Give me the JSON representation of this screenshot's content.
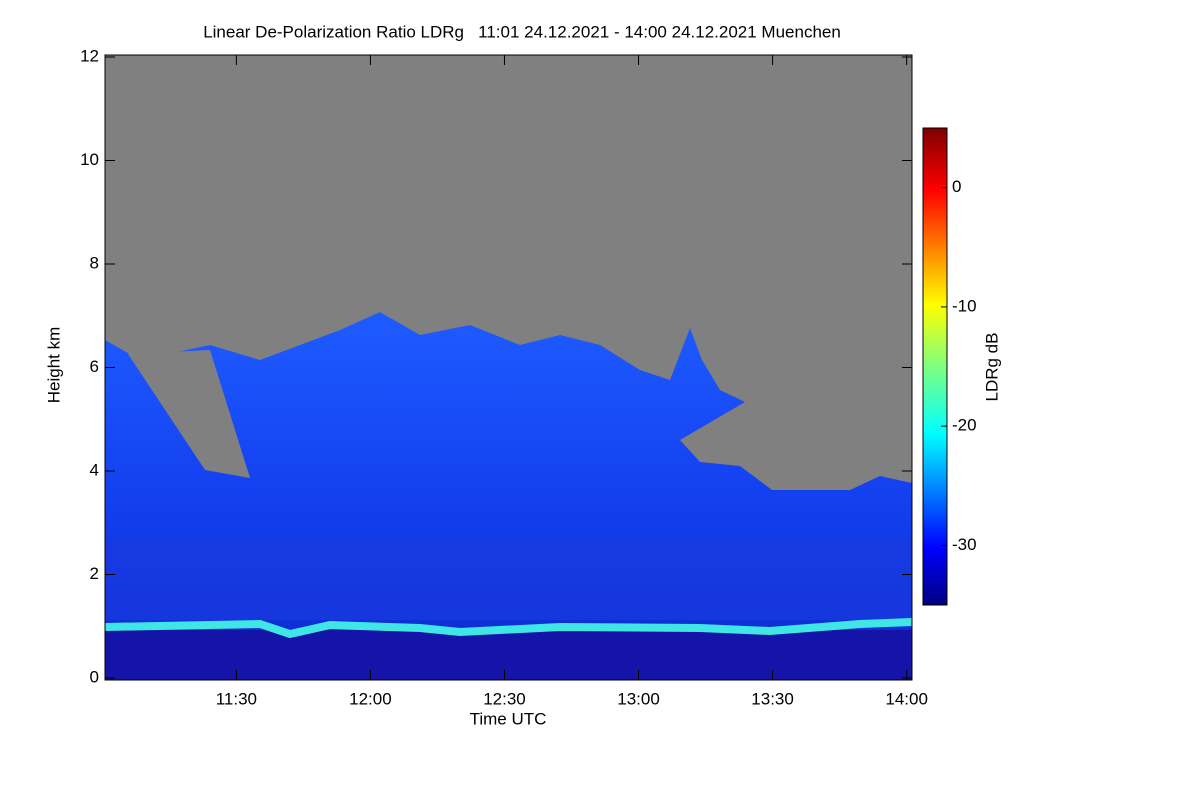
{
  "chart_data": {
    "type": "heatmap",
    "title": "Linear De-Polarization Ratio LDRg   11:01 24.12.2021 - 14:00 24.12.2021 Muenchen",
    "x_label": "Time UTC",
    "y_label": "Height km",
    "colorbar_label": "LDRg dB",
    "xlim": [
      11.01,
      14.02
    ],
    "xticks": [
      {
        "value": 11.5,
        "label": "11:30"
      },
      {
        "value": 12.0,
        "label": "12:00"
      },
      {
        "value": 12.5,
        "label": "12:30"
      },
      {
        "value": 13.0,
        "label": "13:00"
      },
      {
        "value": 13.5,
        "label": "13:30"
      },
      {
        "value": 14.0,
        "label": "14:00"
      }
    ],
    "ylim": [
      0,
      12
    ],
    "yticks": [
      0,
      2,
      4,
      6,
      8,
      10,
      12
    ],
    "clim": [
      -35,
      5
    ],
    "cticks": [
      0,
      -10,
      -20,
      -30
    ]
  }
}
